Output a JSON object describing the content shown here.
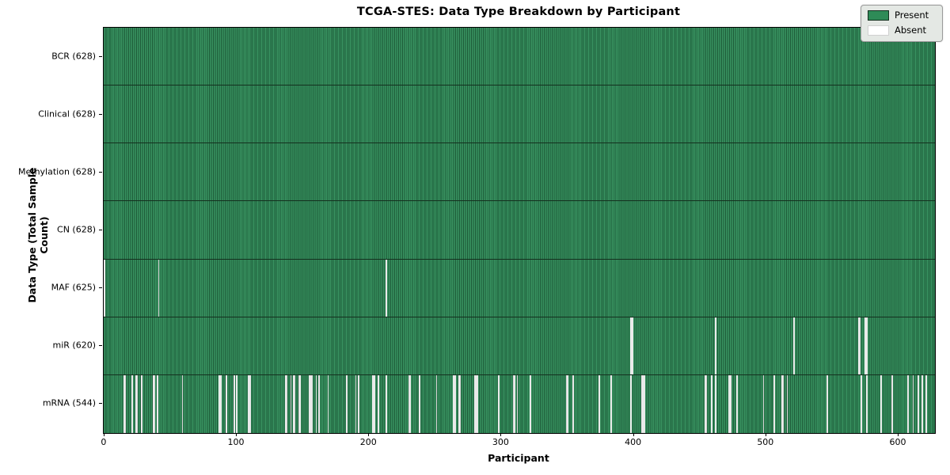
{
  "chart_data": {
    "type": "heatmap",
    "title": "TCGA-STES: Data Type Breakdown by Participant",
    "xlabel": "Participant",
    "ylabel": "Data Type (Total Sample Count)",
    "n_participants": 628,
    "x_ticks": [
      0,
      100,
      200,
      300,
      400,
      500,
      600
    ],
    "xlim": [
      -0.5,
      627.5
    ],
    "grid": false,
    "legend_position": "upper right",
    "colors": {
      "present_fill": "#2e8b57",
      "present_edge": "#1d5a38",
      "absent_fill": "#fdfdfd",
      "row_separator": "#14301f",
      "legend_bg": "#e4e8e4"
    },
    "legend": [
      {
        "label": "Present",
        "color": "#2e8b57"
      },
      {
        "label": "Absent",
        "color": "#ffffff"
      }
    ],
    "rows": [
      {
        "key": "bcr",
        "label": "BCR (628)",
        "present_count": 628,
        "absent_count": 0,
        "absent_participants": []
      },
      {
        "key": "clinical",
        "label": "Clinical (628)",
        "present_count": 628,
        "absent_count": 0,
        "absent_participants": []
      },
      {
        "key": "methylation",
        "label": "Methylation (628)",
        "present_count": 628,
        "absent_count": 0,
        "absent_participants": []
      },
      {
        "key": "cn",
        "label": "CN (628)",
        "present_count": 628,
        "absent_count": 0,
        "absent_participants": []
      },
      {
        "key": "maf",
        "label": "MAF (625)",
        "present_count": 625,
        "absent_count": 3,
        "absent_participants": [
          0,
          41,
          213
        ]
      },
      {
        "key": "mir",
        "label": "miR (620)",
        "present_count": 620,
        "absent_count": 8,
        "absent_participants": [
          398,
          399,
          462,
          521,
          570,
          571,
          575,
          576
        ]
      },
      {
        "key": "mrna",
        "label": "mRNA (544)",
        "present_count": 544,
        "absent_count": 84,
        "absent_participants": [
          15,
          16,
          21,
          24,
          25,
          28,
          37,
          38,
          40,
          59,
          87,
          88,
          92,
          98,
          100,
          109,
          110,
          137,
          138,
          141,
          143,
          144,
          147,
          148,
          155,
          156,
          157,
          160,
          162,
          169,
          183,
          190,
          192,
          203,
          204,
          207,
          213,
          230,
          231,
          238,
          251,
          264,
          265,
          268,
          269,
          280,
          281,
          282,
          298,
          309,
          310,
          312,
          322,
          349,
          350,
          354,
          374,
          383,
          398,
          406,
          407,
          408,
          454,
          455,
          459,
          462,
          472,
          473,
          478,
          498,
          506,
          512,
          513,
          516,
          546,
          572,
          576,
          587,
          595,
          607,
          611,
          615,
          618,
          621
        ]
      }
    ]
  }
}
